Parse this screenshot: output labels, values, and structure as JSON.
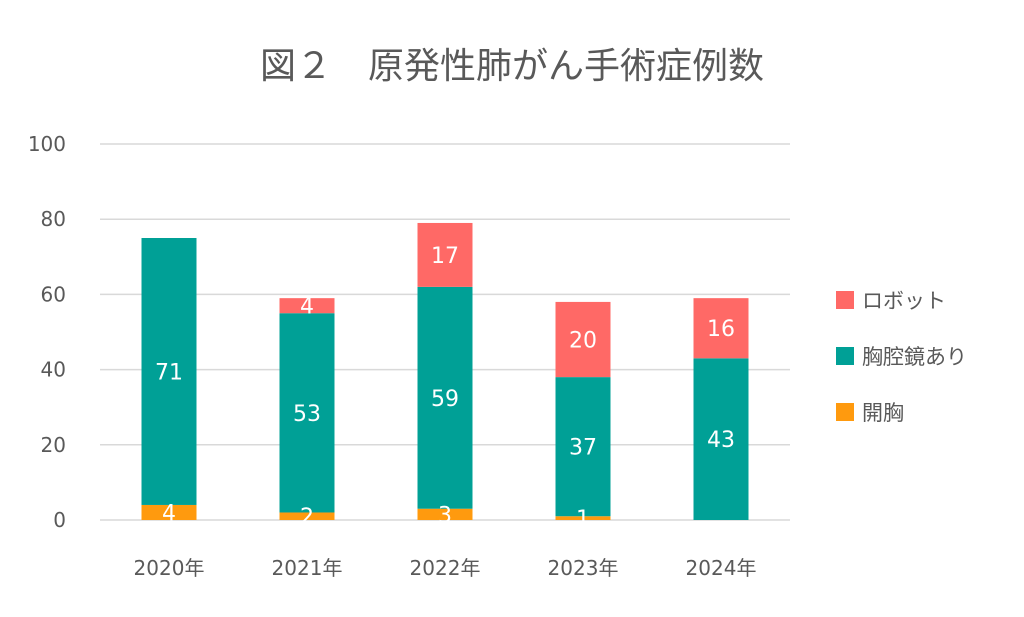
{
  "chart_data": {
    "type": "bar",
    "stacked": true,
    "title": "図２　原発性肺がん手術症例数",
    "xlabel": "",
    "ylabel": "",
    "ylim": [
      0,
      100
    ],
    "yticks": [
      0,
      20,
      40,
      60,
      80,
      100
    ],
    "grid": true,
    "legend_position": "right",
    "categories": [
      "2020年",
      "2021年",
      "2022年",
      "2023年",
      "2024年"
    ],
    "series": [
      {
        "name": "開胸",
        "color": "#FF9A0E",
        "values": [
          4,
          2,
          3,
          1,
          0
        ]
      },
      {
        "name": "胸腔鏡あり",
        "color": "#00A096",
        "values": [
          71,
          53,
          59,
          37,
          43
        ]
      },
      {
        "name": "ロボット",
        "color": "#FF6966",
        "values": [
          0,
          4,
          17,
          20,
          16
        ]
      }
    ],
    "legend_order": [
      "ロボット",
      "胸腔鏡あり",
      "開胸"
    ]
  }
}
